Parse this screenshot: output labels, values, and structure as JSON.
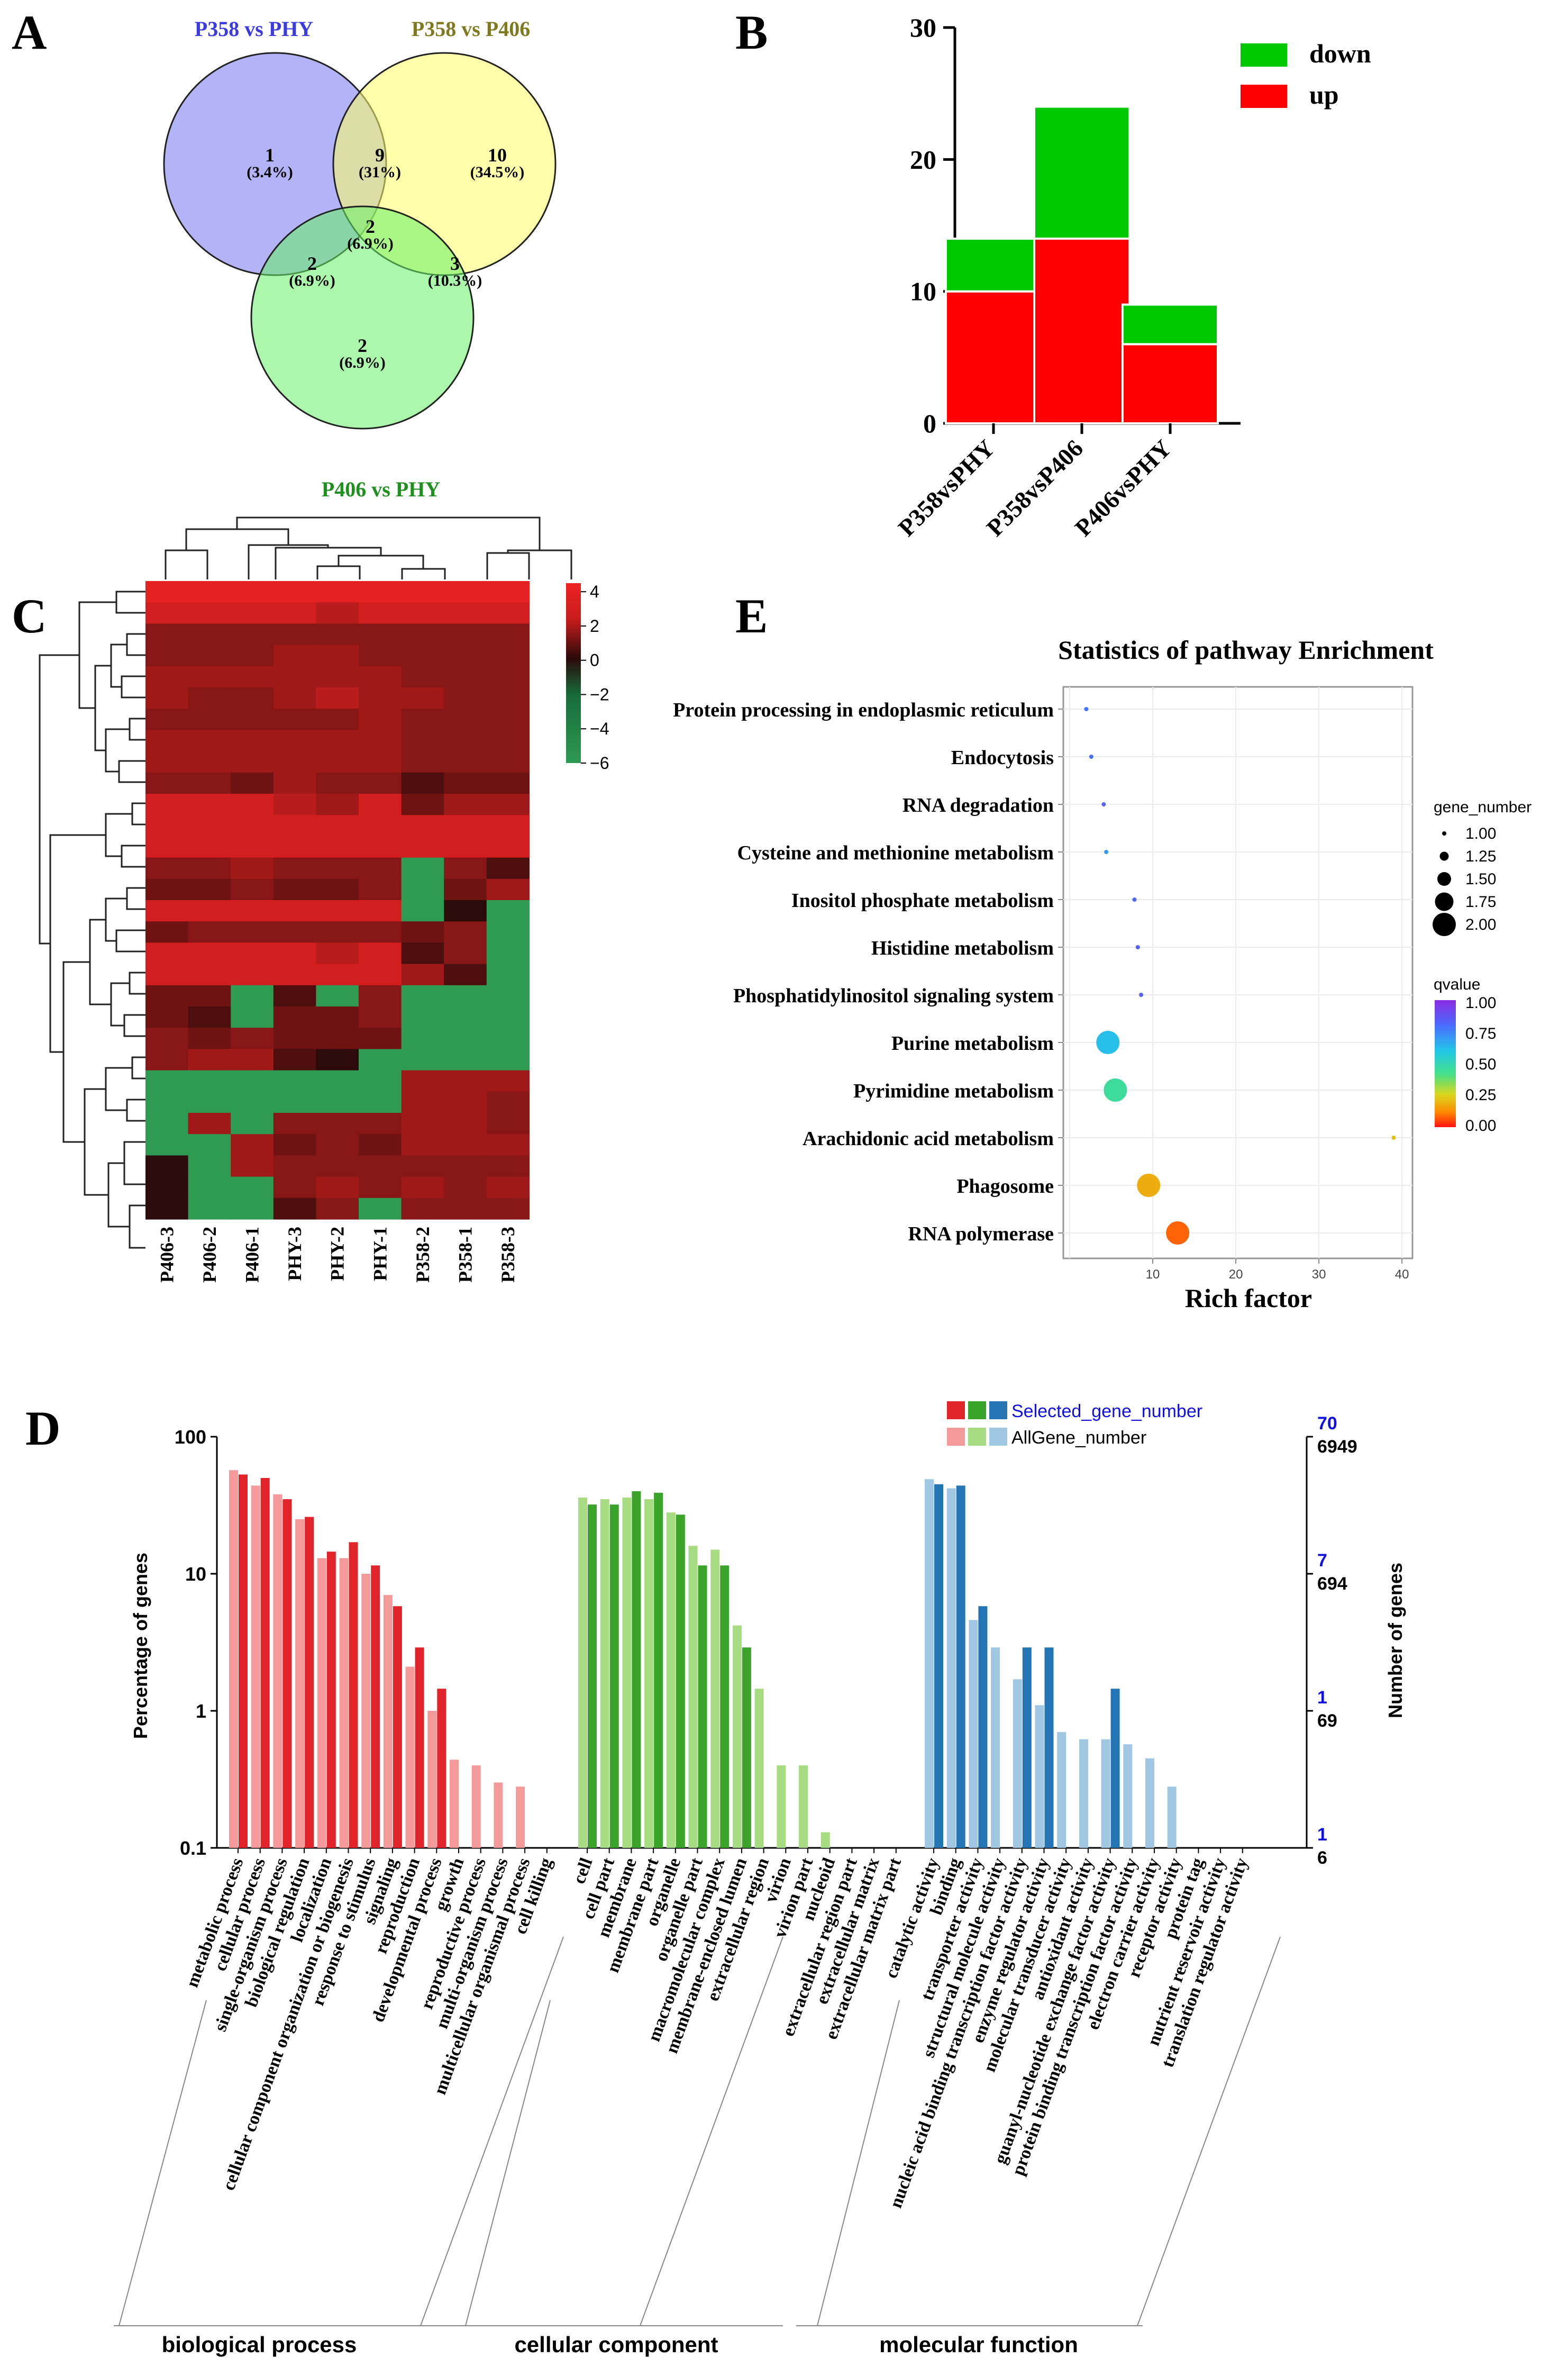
{
  "panels": {
    "a": "A",
    "b": "B",
    "c": "C",
    "d": "D",
    "e": "E"
  },
  "colors": {
    "blue": "#7575f0",
    "yellow": "#ffff7a",
    "green": "#7dfa7d",
    "up": "#ff0000",
    "down": "#00c800",
    "heat_high": "#dd2222",
    "heat_mid": "#2b0a0a",
    "heat_low": "#2e9a52"
  },
  "chart_data": [
    {
      "type": "venn",
      "sets": [
        {
          "name": "P358 vs PHY",
          "color": "#3b3be0"
        },
        {
          "name": "P358 vs P406",
          "color": "#7f7a20"
        },
        {
          "name": "P406 vs PHY",
          "color": "#1f8f1f"
        }
      ],
      "regions": [
        {
          "sets": [
            "P358 vs PHY"
          ],
          "count": "1",
          "pct": "(3.4%)"
        },
        {
          "sets": [
            "P358 vs PHY",
            "P358 vs P406"
          ],
          "count": "9",
          "pct": "(31%)"
        },
        {
          "sets": [
            "P358 vs P406"
          ],
          "count": "10",
          "pct": "(34.5%)"
        },
        {
          "sets": [
            "P358 vs PHY",
            "P358 vs P406",
            "P406 vs PHY"
          ],
          "count": "2",
          "pct": "(6.9%)"
        },
        {
          "sets": [
            "P358 vs PHY",
            "P406 vs PHY"
          ],
          "count": "2",
          "pct": "(6.9%)"
        },
        {
          "sets": [
            "P358 vs P406",
            "P406 vs PHY"
          ],
          "count": "3",
          "pct": "(10.3%)"
        },
        {
          "sets": [
            "P406 vs PHY"
          ],
          "count": "2",
          "pct": "(6.9%)"
        }
      ]
    },
    {
      "type": "bar",
      "stacked": true,
      "categories": [
        "P358vsPHY",
        "P358vsP406",
        "P406vsPHY"
      ],
      "series": [
        {
          "name": "up",
          "values": [
            10,
            14,
            6
          ],
          "color": "#ff0000"
        },
        {
          "name": "down",
          "values": [
            4,
            10,
            3
          ],
          "color": "#00c800"
        }
      ],
      "ylim": [
        0,
        30
      ],
      "yticks": [
        "0",
        "10",
        "20",
        "30"
      ],
      "legend": [
        "down",
        "up"
      ],
      "legend_position": "top-right"
    },
    {
      "type": "heatmap",
      "columns": [
        "P406-3",
        "P406-2",
        "P406-1",
        "PHY-3",
        "PHY-2",
        "PHY-1",
        "P358-2",
        "P358-1",
        "P358-3"
      ],
      "colorbar_ticks": [
        "4",
        "2",
        "0",
        "−2",
        "−4",
        "−6"
      ],
      "colorbar_range": [
        -6,
        4.5
      ],
      "values": [
        [
          4,
          4,
          4,
          4,
          4,
          4,
          4,
          4,
          4
        ],
        [
          3,
          3,
          3,
          3,
          2.5,
          3,
          3,
          3,
          3
        ],
        [
          1.5,
          1.5,
          1.5,
          1.5,
          1.5,
          1.5,
          1.5,
          1.5,
          1.5
        ],
        [
          1.5,
          1.5,
          1.5,
          2,
          2,
          1.5,
          1.5,
          1.5,
          1.5
        ],
        [
          2,
          2,
          2,
          2,
          2,
          2,
          1.5,
          1.5,
          1.5
        ],
        [
          2,
          1.5,
          1.5,
          2,
          2.5,
          2,
          2,
          1.5,
          1.5
        ],
        [
          1.5,
          1.5,
          1.5,
          1.5,
          1.5,
          2,
          1.5,
          1.5,
          1.5
        ],
        [
          2,
          2,
          2,
          2,
          2,
          2,
          1.5,
          1.5,
          1.5
        ],
        [
          2,
          2,
          2,
          2,
          2,
          2,
          1.5,
          1.5,
          1.5
        ],
        [
          1.5,
          1.5,
          1,
          2,
          1.5,
          1.5,
          0.5,
          1,
          1
        ],
        [
          3,
          3,
          3,
          2.5,
          2,
          3,
          1,
          2,
          2
        ],
        [
          3,
          3,
          3,
          3,
          3,
          3,
          3,
          3,
          3
        ],
        [
          3,
          3,
          3,
          3,
          3,
          3,
          3,
          3,
          3
        ],
        [
          1.5,
          1.5,
          2,
          1.5,
          1.5,
          1.5,
          -6,
          1.5,
          0.5
        ],
        [
          1,
          1,
          1.5,
          1,
          1,
          1.5,
          -6,
          1,
          2
        ],
        [
          3,
          3,
          3,
          3,
          3,
          3,
          -6,
          0,
          -6
        ],
        [
          1,
          1.5,
          1.5,
          1.5,
          1.5,
          1.5,
          1,
          1.5,
          -6
        ],
        [
          3,
          3,
          3,
          3,
          2.5,
          3,
          0.5,
          1.5,
          -6
        ],
        [
          3,
          3,
          3,
          3,
          3,
          3,
          2,
          0.5,
          -6
        ],
        [
          1,
          1,
          -6,
          0.5,
          -6,
          1.5,
          -6,
          -6,
          -6
        ],
        [
          1,
          0.5,
          -6,
          1,
          1,
          1.5,
          -6,
          -6,
          -6
        ],
        [
          1.5,
          1,
          1.5,
          1,
          1,
          1,
          -6,
          -6,
          -6
        ],
        [
          1.5,
          2,
          2,
          0.5,
          0,
          -6,
          -6,
          -6,
          -6
        ],
        [
          -6,
          -6,
          -6,
          -6,
          -6,
          -6,
          2,
          2,
          2
        ],
        [
          -6,
          -6,
          -6,
          -6,
          -6,
          -6,
          2,
          2,
          1.5
        ],
        [
          -6,
          2,
          -6,
          1.5,
          1.5,
          1.5,
          2,
          2,
          1.5
        ],
        [
          -6,
          -6,
          2,
          1,
          1.5,
          1,
          2,
          2,
          2
        ],
        [
          0,
          -6,
          2,
          1.5,
          1.5,
          1.5,
          1.5,
          1.5,
          1.5
        ],
        [
          0,
          -6,
          -6,
          1.5,
          2,
          1.5,
          2,
          1.5,
          2
        ],
        [
          0,
          -6,
          -6,
          0.5,
          1.5,
          -6,
          1.5,
          1.5,
          1.5
        ]
      ]
    },
    {
      "type": "bar",
      "log_scale": true,
      "ylabel": "Percentage of genes",
      "ylabel_right": "Number of genes",
      "ylim": [
        0.1,
        100
      ],
      "yticks": [
        "0.1",
        "1",
        "10",
        "100"
      ],
      "right_ticks_selected": [
        "70",
        "7",
        "1",
        "1"
      ],
      "right_ticks_all": [
        "6949",
        "694",
        "69",
        "6"
      ],
      "legend": [
        "Selected_gene_number",
        "AllGene_number"
      ],
      "legend_position": "top-right",
      "groups": [
        {
          "name": "biological process",
          "label": "biological    process",
          "light": "#f59a9a",
          "dark": "#e0242a",
          "categories": [
            "metabolic process",
            "cellular process",
            "single-organism process",
            "biological regulation",
            "localization",
            "cellular component organization or biogenesis",
            "response to stimulus",
            "signaling",
            "reproduction",
            "developmental process",
            "growth",
            "reproductive process",
            "multi-organism process",
            "multicellular organismal process",
            "cell killing"
          ],
          "all": [
            57,
            44,
            38,
            25,
            13,
            13,
            10,
            7,
            2.1,
            1,
            0.44,
            0.4,
            0.3,
            0.28,
            0
          ],
          "selected": [
            53,
            50,
            35,
            26,
            14.5,
            17,
            11.5,
            5.8,
            2.9,
            1.45,
            0,
            0,
            0,
            0,
            0
          ]
        },
        {
          "name": "cellular component",
          "label": "cellular    component",
          "light": "#a8dc82",
          "dark": "#3aa42a",
          "categories": [
            "cell",
            "cell part",
            "membrane",
            "membrane part",
            "organelle",
            "organelle part",
            "macromolecular complex",
            "membrane-enclosed lumen",
            "extracellular region",
            "virion",
            "virion part",
            "nucleoid",
            "extracellular region part",
            "extracellular matrix",
            "extracellular matrix part"
          ],
          "all": [
            36,
            35,
            36,
            35,
            28,
            16,
            15,
            4.2,
            1.45,
            0.4,
            0.4,
            0.13,
            0,
            0,
            0
          ],
          "selected": [
            32,
            32,
            40,
            39,
            27,
            11.5,
            11.5,
            2.9,
            0,
            0,
            0,
            0,
            0,
            0,
            0
          ]
        },
        {
          "name": "molecular function",
          "label": "molecular   function",
          "light": "#a0c8e2",
          "dark": "#2475b4",
          "categories": [
            "catalytic activity",
            "binding",
            "transporter activity",
            "structural molecule activity",
            "nucleic acid binding transcription factor activity",
            "enzyme regulator activity",
            "molecular transducer activity",
            "antioxidant activity",
            "guanyl-nucleotide exchange factor activity",
            "protein binding transcription factor activity",
            "electron carrier activity",
            "receptor activity",
            "protein tag",
            "nutrient reservoir activity",
            "translation regulator activity"
          ],
          "all": [
            49,
            42,
            4.6,
            2.9,
            1.7,
            1.1,
            0.7,
            0.62,
            0.62,
            0.57,
            0.45,
            0.28,
            0,
            0,
            0
          ],
          "selected": [
            45,
            44,
            5.8,
            0,
            2.9,
            2.9,
            0,
            0,
            1.45,
            0,
            0,
            0,
            0,
            0,
            0
          ]
        }
      ]
    },
    {
      "type": "scatter",
      "title": "Statistics of  pathway Enrichment",
      "xlabel": "Rich factor",
      "xticks": [
        "10",
        "20",
        "30",
        "40"
      ],
      "xlim": [
        0,
        40.5
      ],
      "pathways": [
        {
          "name": "Protein processing in endoplasmic reticulum",
          "rich": 2,
          "genes": 1,
          "q": 0.78
        },
        {
          "name": "Endocytosis",
          "rich": 2.6,
          "genes": 1,
          "q": 0.8
        },
        {
          "name": "RNA degradation",
          "rich": 4.1,
          "genes": 1,
          "q": 0.82
        },
        {
          "name": "Cysteine and methionine metabolism",
          "rich": 4.4,
          "genes": 1,
          "q": 0.7
        },
        {
          "name": "Inositol phosphate metabolism",
          "rich": 7.8,
          "genes": 1,
          "q": 0.82
        },
        {
          "name": "Histidine metabolism",
          "rich": 8.2,
          "genes": 1,
          "q": 0.84
        },
        {
          "name": "Phosphatidylinositol signaling system",
          "rich": 8.6,
          "genes": 1,
          "q": 0.83
        },
        {
          "name": "Purine metabolism",
          "rich": 4.6,
          "genes": 2,
          "q": 0.62
        },
        {
          "name": "Pyrimidine metabolism",
          "rich": 5.5,
          "genes": 2,
          "q": 0.45
        },
        {
          "name": "Arachidonic acid metabolism",
          "rich": 39,
          "genes": 1,
          "q": 0.22
        },
        {
          "name": "Phagosome",
          "rich": 9.5,
          "genes": 2,
          "q": 0.18
        },
        {
          "name": "RNA polymerase",
          "rich": 13,
          "genes": 2,
          "q": 0.08
        }
      ],
      "legend_size_title": "gene_number",
      "legend_size_labels": [
        "1.00",
        "1.25",
        "1.50",
        "1.75",
        "2.00"
      ],
      "legend_color_title": "qvalue",
      "legend_color_labels": [
        "1.00",
        "0.75",
        "0.50",
        "0.25",
        "0.00"
      ]
    }
  ]
}
